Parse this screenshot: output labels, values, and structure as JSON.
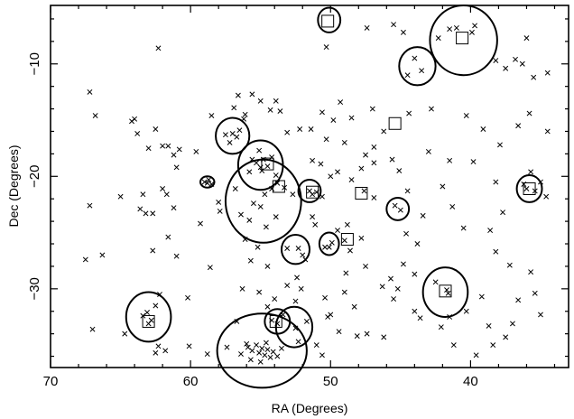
{
  "chart_data": {
    "type": "scatter",
    "xlabel": "RA (Degrees)",
    "ylabel": "Dec (Degrees)",
    "xlim": [
      70,
      33
    ],
    "ylim": [
      -37,
      -4.8
    ],
    "x_ticks": [
      70,
      60,
      50,
      40
    ],
    "y_ticks": [
      -10,
      -20,
      -30
    ],
    "x_tick_labels": [
      "70",
      "60",
      "50",
      "40"
    ],
    "y_tick_labels": [
      "−10",
      "−20",
      "−30"
    ],
    "colors": {
      "marks": "#000000",
      "background": "#ffffff"
    },
    "series": [
      {
        "marker": "x",
        "points": [
          [
            62.3,
            -8.6
          ],
          [
            50.3,
            -8.5
          ],
          [
            47.4,
            -6.8
          ],
          [
            45.5,
            -6.5
          ],
          [
            44.8,
            -7.2
          ],
          [
            41.5,
            -6.9
          ],
          [
            42.3,
            -7.7
          ],
          [
            41.0,
            -6.8
          ],
          [
            39.9,
            -7.2
          ],
          [
            39.7,
            -6.6
          ],
          [
            36.0,
            -7.7
          ],
          [
            44.0,
            -9.5
          ],
          [
            43.5,
            -10.6
          ],
          [
            44.5,
            -11.0
          ],
          [
            38.2,
            -9.7
          ],
          [
            37.5,
            -10.4
          ],
          [
            36.8,
            -9.6
          ],
          [
            36.3,
            -10.0
          ],
          [
            35.5,
            -11.2
          ],
          [
            34.5,
            -10.8
          ],
          [
            67.2,
            -12.5
          ],
          [
            66.8,
            -14.6
          ],
          [
            64.2,
            -15.1
          ],
          [
            64.0,
            -14.9
          ],
          [
            62.5,
            -15.8
          ],
          [
            63.0,
            -17.5
          ],
          [
            62.0,
            -17.3
          ],
          [
            61.6,
            -17.3
          ],
          [
            60.8,
            -17.6
          ],
          [
            59.6,
            -17.8
          ],
          [
            61.2,
            -18.1
          ],
          [
            61.0,
            -19.2
          ],
          [
            63.8,
            -16.2
          ],
          [
            58.5,
            -14.6
          ],
          [
            56.9,
            -13.9
          ],
          [
            56.6,
            -12.8
          ],
          [
            56.1,
            -14.5
          ],
          [
            55.6,
            -12.7
          ],
          [
            55.0,
            -13.3
          ],
          [
            54.3,
            -14.1
          ],
          [
            53.9,
            -13.3
          ],
          [
            53.6,
            -14.2
          ],
          [
            53.1,
            -16.1
          ],
          [
            52.2,
            -15.8
          ],
          [
            51.4,
            -15.8
          ],
          [
            50.3,
            -16.7
          ],
          [
            49.8,
            -15.0
          ],
          [
            49.0,
            -17.0
          ],
          [
            47.5,
            -18.1
          ],
          [
            46.9,
            -17.4
          ],
          [
            46.2,
            -16.0
          ],
          [
            44.4,
            -14.4
          ],
          [
            42.8,
            -14.0
          ],
          [
            40.3,
            -14.6
          ],
          [
            39.1,
            -15.8
          ],
          [
            37.9,
            -17.2
          ],
          [
            36.6,
            -15.5
          ],
          [
            35.8,
            -14.4
          ],
          [
            34.5,
            -16.0
          ],
          [
            57.5,
            -16.3
          ],
          [
            57.0,
            -16.2
          ],
          [
            56.7,
            -16.5
          ],
          [
            57.2,
            -17.0
          ],
          [
            56.5,
            -15.9
          ],
          [
            55.6,
            -18.5
          ],
          [
            55.3,
            -18.8
          ],
          [
            55.0,
            -19.2
          ],
          [
            54.8,
            -18.5
          ],
          [
            54.5,
            -19.1
          ],
          [
            54.9,
            -19.5
          ],
          [
            55.8,
            -19.6
          ],
          [
            55.1,
            -17.7
          ],
          [
            54.2,
            -18.3
          ],
          [
            53.9,
            -19.9
          ],
          [
            51.3,
            -18.6
          ],
          [
            50.7,
            -18.9
          ],
          [
            50.0,
            -20.0
          ],
          [
            49.5,
            -19.6
          ],
          [
            48.5,
            -20.3
          ],
          [
            47.8,
            -19.3
          ],
          [
            46.9,
            -18.8
          ],
          [
            45.6,
            -18.5
          ],
          [
            43.0,
            -17.8
          ],
          [
            41.5,
            -18.6
          ],
          [
            39.8,
            -18.7
          ],
          [
            38.2,
            -20.5
          ],
          [
            35.7,
            -19.6
          ],
          [
            35.0,
            -20.5
          ],
          [
            36.2,
            -20.7
          ],
          [
            35.4,
            -21.3
          ],
          [
            36.0,
            -21.1
          ],
          [
            34.6,
            -21.8
          ],
          [
            37.7,
            -23.2
          ],
          [
            38.6,
            -24.8
          ],
          [
            59.0,
            -20.5
          ],
          [
            58.8,
            -20.6
          ],
          [
            58.7,
            -20.3
          ],
          [
            58.5,
            -20.7
          ],
          [
            58.0,
            -22.3
          ],
          [
            56.8,
            -21.1
          ],
          [
            57.9,
            -23.1
          ],
          [
            56.4,
            -23.4
          ],
          [
            55.5,
            -22.4
          ],
          [
            55.0,
            -22.7
          ],
          [
            54.7,
            -21.6
          ],
          [
            54.2,
            -21.1
          ],
          [
            53.8,
            -20.6
          ],
          [
            53.3,
            -21.0
          ],
          [
            52.7,
            -21.6
          ],
          [
            55.8,
            -23.9
          ],
          [
            53.9,
            -23.6
          ],
          [
            54.6,
            -24.5
          ],
          [
            55.2,
            -26.3
          ],
          [
            51.5,
            -21.3
          ],
          [
            51.3,
            -21.6
          ],
          [
            51.0,
            -21.4
          ],
          [
            50.6,
            -21.8
          ],
          [
            47.6,
            -21.3
          ],
          [
            46.9,
            -21.9
          ],
          [
            45.4,
            -22.6
          ],
          [
            45.0,
            -23.0
          ],
          [
            43.4,
            -23.5
          ],
          [
            41.3,
            -22.7
          ],
          [
            44.6,
            -25.1
          ],
          [
            40.5,
            -24.6
          ],
          [
            42.0,
            -20.9
          ],
          [
            48.8,
            -24.3
          ],
          [
            47.8,
            -25.5
          ],
          [
            49.0,
            -25.7
          ],
          [
            49.9,
            -25.9
          ],
          [
            50.4,
            -26.3
          ],
          [
            48.6,
            -26.6
          ],
          [
            52.3,
            -26.4
          ],
          [
            52.0,
            -27.0
          ],
          [
            53.1,
            -26.4
          ],
          [
            51.8,
            -27.4
          ],
          [
            54.5,
            -28.0
          ],
          [
            52.4,
            -29.0
          ],
          [
            48.9,
            -28.6
          ],
          [
            47.5,
            -28.0
          ],
          [
            46.3,
            -29.8
          ],
          [
            45.7,
            -29.1
          ],
          [
            45.2,
            -30.0
          ],
          [
            44.8,
            -27.8
          ],
          [
            42.5,
            -29.4
          ],
          [
            41.7,
            -30.1
          ],
          [
            41.6,
            -30.4
          ],
          [
            38.2,
            -26.7
          ],
          [
            37.2,
            -27.9
          ],
          [
            35.7,
            -28.5
          ],
          [
            35.4,
            -30.4
          ],
          [
            36.6,
            -31.0
          ],
          [
            67.5,
            -27.4
          ],
          [
            66.3,
            -27.0
          ],
          [
            65.0,
            -21.8
          ],
          [
            63.4,
            -21.6
          ],
          [
            62.0,
            -21.1
          ],
          [
            61.7,
            -21.6
          ],
          [
            61.2,
            -22.8
          ],
          [
            63.6,
            -22.9
          ],
          [
            63.2,
            -23.3
          ],
          [
            62.7,
            -23.3
          ],
          [
            61.6,
            -25.4
          ],
          [
            62.7,
            -26.6
          ],
          [
            61.0,
            -27.1
          ],
          [
            59.3,
            -24.2
          ],
          [
            60.2,
            -30.8
          ],
          [
            58.6,
            -28.1
          ],
          [
            67.2,
            -22.6
          ],
          [
            67.0,
            -33.6
          ],
          [
            64.7,
            -34.0
          ],
          [
            63.4,
            -32.4
          ],
          [
            63.1,
            -32.1
          ],
          [
            62.8,
            -32.8
          ],
          [
            63.0,
            -33.1
          ],
          [
            62.5,
            -31.5
          ],
          [
            62.2,
            -30.5
          ],
          [
            62.3,
            -35.1
          ],
          [
            61.8,
            -35.5
          ],
          [
            62.5,
            -35.7
          ],
          [
            60.1,
            -35.1
          ],
          [
            58.8,
            -35.8
          ],
          [
            56.7,
            -32.9
          ],
          [
            57.4,
            -35.2
          ],
          [
            54.2,
            -32.8
          ],
          [
            53.8,
            -33.1
          ],
          [
            54.5,
            -31.6
          ],
          [
            53.4,
            -32.3
          ],
          [
            52.5,
            -33.5
          ],
          [
            51.7,
            -32.9
          ],
          [
            50.4,
            -30.8
          ],
          [
            50.0,
            -32.3
          ],
          [
            50.2,
            -32.5
          ],
          [
            49.4,
            -33.8
          ],
          [
            50.6,
            -35.9
          ],
          [
            51.0,
            -35.0
          ],
          [
            52.3,
            -34.7
          ],
          [
            55.9,
            -35.2
          ],
          [
            55.6,
            -35.5
          ],
          [
            55.3,
            -35.0
          ],
          [
            55.1,
            -35.7
          ],
          [
            54.9,
            -35.3
          ],
          [
            54.7,
            -35.9
          ],
          [
            54.5,
            -35.4
          ],
          [
            54.3,
            -36.1
          ],
          [
            54.1,
            -35.6
          ],
          [
            53.8,
            -36.0
          ],
          [
            55.7,
            -36.3
          ],
          [
            56.4,
            -35.8
          ],
          [
            55.0,
            -36.5
          ],
          [
            54.6,
            -34.8
          ],
          [
            56.0,
            -34.9
          ],
          [
            53.5,
            -35.3
          ],
          [
            43.6,
            -32.6
          ],
          [
            45.5,
            -30.9
          ],
          [
            44.0,
            -32.0
          ],
          [
            41.2,
            -35.0
          ],
          [
            38.4,
            -35.0
          ],
          [
            35.0,
            -32.3
          ],
          [
            47.4,
            -34.0
          ],
          [
            48.1,
            -34.2
          ],
          [
            46.2,
            -34.3
          ],
          [
            49.5,
            -24.8
          ],
          [
            50.1,
            -26.3
          ],
          [
            51.3,
            -23.6
          ],
          [
            51.1,
            -24.3
          ],
          [
            50.6,
            -14.3
          ],
          [
            49.3,
            -13.4
          ],
          [
            48.5,
            -14.8
          ],
          [
            47.0,
            -14.0
          ],
          [
            56.2,
            -14.9
          ],
          [
            45.1,
            -19.5
          ],
          [
            44.5,
            -21.3
          ],
          [
            43.8,
            -26.0
          ],
          [
            44.0,
            -28.7
          ],
          [
            42.1,
            -33.4
          ],
          [
            40.3,
            -32.0
          ],
          [
            39.2,
            -30.7
          ],
          [
            41.5,
            -32.5
          ],
          [
            37.0,
            -33.1
          ],
          [
            38.7,
            -33.3
          ],
          [
            39.6,
            -35.9
          ],
          [
            37.5,
            -34.3
          ],
          [
            52.1,
            -30.0
          ],
          [
            53.1,
            -29.7
          ],
          [
            56.1,
            -25.6
          ],
          [
            55.7,
            -27.5
          ],
          [
            56.3,
            -30.0
          ],
          [
            55.1,
            -30.3
          ],
          [
            54.0,
            -30.9
          ],
          [
            52.5,
            -31.1
          ],
          [
            49.0,
            -30.3
          ],
          [
            48.3,
            -31.6
          ]
        ]
      }
    ],
    "regions": {
      "ellipses": [
        {
          "ra": 50.1,
          "dec": -6.1,
          "rra": 0.8,
          "rdec": 1.1
        },
        {
          "ra": 40.5,
          "dec": -7.9,
          "rra": 2.4,
          "rdec": 3.1
        },
        {
          "ra": 43.8,
          "dec": -10.2,
          "rra": 1.3,
          "rdec": 1.7
        },
        {
          "ra": 57.0,
          "dec": -16.4,
          "rra": 1.2,
          "rdec": 1.6
        },
        {
          "ra": 55.0,
          "dec": -19.0,
          "rra": 1.6,
          "rdec": 2.2
        },
        {
          "ra": 58.8,
          "dec": -20.5,
          "rra": 0.5,
          "rdec": 0.5
        },
        {
          "ra": 54.8,
          "dec": -22.2,
          "rra": 2.7,
          "rdec": 3.7
        },
        {
          "ra": 51.5,
          "dec": -21.3,
          "rra": 0.8,
          "rdec": 1.0
        },
        {
          "ra": 45.2,
          "dec": -22.9,
          "rra": 0.8,
          "rdec": 1.0
        },
        {
          "ra": 35.8,
          "dec": -21.1,
          "rra": 0.9,
          "rdec": 1.2
        },
        {
          "ra": 52.5,
          "dec": -26.5,
          "rra": 1.0,
          "rdec": 1.3
        },
        {
          "ra": 50.1,
          "dec": -26.0,
          "rra": 0.7,
          "rdec": 1.0
        },
        {
          "ra": 41.8,
          "dec": -30.3,
          "rra": 1.6,
          "rdec": 2.2
        },
        {
          "ra": 63.0,
          "dec": -32.5,
          "rra": 1.6,
          "rdec": 2.2
        },
        {
          "ra": 53.8,
          "dec": -32.9,
          "rra": 0.9,
          "rdec": 1.1
        },
        {
          "ra": 52.6,
          "dec": -33.4,
          "rra": 1.3,
          "rdec": 1.8
        },
        {
          "ra": 54.9,
          "dec": -35.5,
          "rra": 3.2,
          "rdec": 3.3
        }
      ],
      "squares": [
        {
          "ra": 50.2,
          "dec": -6.2
        },
        {
          "ra": 40.6,
          "dec": -7.7
        },
        {
          "ra": 45.4,
          "dec": -15.3
        },
        {
          "ra": 54.5,
          "dec": -18.9
        },
        {
          "ra": 53.7,
          "dec": -20.9
        },
        {
          "ra": 51.3,
          "dec": -21.4
        },
        {
          "ra": 47.8,
          "dec": -21.5
        },
        {
          "ra": 35.8,
          "dec": -21.1
        },
        {
          "ra": 48.8,
          "dec": -25.6
        },
        {
          "ra": 41.8,
          "dec": -30.2
        },
        {
          "ra": 63.0,
          "dec": -32.9
        },
        {
          "ra": 53.9,
          "dec": -32.9
        }
      ]
    }
  }
}
